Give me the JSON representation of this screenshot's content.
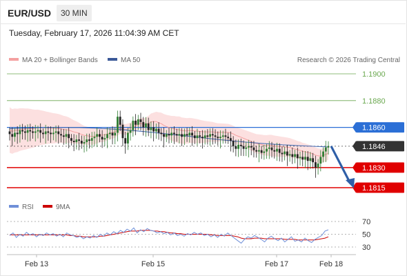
{
  "header": {
    "symbol": "EUR/USD",
    "timeframe": "30 MIN",
    "datetime": "Tuesday, February 17, 2026 11:04:39 AM CET"
  },
  "legend": {
    "ma20_bb": "MA 20 + Bollinger Bands",
    "ma50": "MA 50",
    "credit": "Research © 2026 Trading Central",
    "rsi": "RSI",
    "ma9": "9MA"
  },
  "colors": {
    "ma20": "#f4a0a0",
    "bands_fill": "#fbdada",
    "ma50": "#4a6fb5",
    "resistance_green": "#6aa84f",
    "resistance_blue": "#2b6fd6",
    "current": "#333333",
    "support_red": "#e00000",
    "candle_up": "#2e7d32",
    "candle_down": "#222222",
    "rsi_line": "#6f8fd8",
    "rsi_ma": "#cc0000"
  },
  "chart_data": [
    {
      "type": "candlestick",
      "x_labels": [
        "Feb 13",
        "Feb 15",
        "Feb 17",
        "Feb 18"
      ],
      "ylim": [
        1.1805,
        1.1905
      ],
      "levels": [
        {
          "value": "1.1900",
          "kind": "resistance",
          "color": "#6aa84f",
          "boxed": false
        },
        {
          "value": "1.1880",
          "kind": "resistance",
          "color": "#6aa84f",
          "boxed": false
        },
        {
          "value": "1.1860",
          "kind": "pivot",
          "color": "#2b6fd6",
          "boxed": true
        },
        {
          "value": "1.1846",
          "kind": "current",
          "color": "#333333",
          "boxed": true
        },
        {
          "value": "1.1830",
          "kind": "support",
          "color": "#e00000",
          "boxed": true
        },
        {
          "value": "1.1815",
          "kind": "support",
          "color": "#e00000",
          "boxed": true
        }
      ],
      "closes": [
        1.1855,
        1.1853,
        1.1856,
        1.1855,
        1.1858,
        1.1857,
        1.1856,
        1.1858,
        1.1857,
        1.1856,
        1.1857,
        1.1858,
        1.1856,
        1.1855,
        1.1857,
        1.1856,
        1.1855,
        1.1856,
        1.1857,
        1.1855,
        1.1854,
        1.1853,
        1.1855,
        1.1852,
        1.185,
        1.1849,
        1.1851,
        1.185,
        1.1848,
        1.1849,
        1.1851,
        1.185,
        1.1852,
        1.1853,
        1.1855,
        1.1853,
        1.1851,
        1.1852,
        1.1855,
        1.1856,
        1.1854,
        1.1856,
        1.1868,
        1.1862,
        1.1852,
        1.1848,
        1.1856,
        1.1858,
        1.1865,
        1.1862,
        1.1866,
        1.1864,
        1.186,
        1.1863,
        1.1858,
        1.186,
        1.1857,
        1.1859,
        1.1856,
        1.1855,
        1.1853,
        1.1855,
        1.1854,
        1.1856,
        1.1855,
        1.1854,
        1.1855,
        1.1853,
        1.1855,
        1.1854,
        1.1856,
        1.1854,
        1.1852,
        1.1854,
        1.1853,
        1.1852,
        1.1854,
        1.1853,
        1.1855,
        1.1854,
        1.1853,
        1.1852,
        1.1853,
        1.1854,
        1.1853,
        1.1852,
        1.185,
        1.1846,
        1.1844,
        1.1847,
        1.1846,
        1.1844,
        1.1845,
        1.1846,
        1.1845,
        1.1843,
        1.1842,
        1.1843,
        1.1841,
        1.1842,
        1.1844,
        1.1845,
        1.1843,
        1.1842,
        1.1844,
        1.1841,
        1.184,
        1.1842,
        1.1839,
        1.184,
        1.1838,
        1.184,
        1.1837,
        1.1838,
        1.1836,
        1.1838,
        1.1835,
        1.1837,
        1.1834,
        1.183,
        1.1833,
        1.1838,
        1.1842,
        1.1845,
        1.1846
      ],
      "ma20_band_halfwidth": [
        0.0017,
        0.0015,
        0.0012,
        0.001,
        0.0007,
        0.0005,
        0.0004,
        0.0004,
        0.0008,
        0.001,
        0.0009,
        0.0007,
        0.0006,
        0.0007,
        0.0008,
        0.0007,
        0.0006,
        0.0005
      ],
      "ma50_start": 1.1859,
      "ma50_end": 1.1846,
      "forecast": {
        "from": "1.1846",
        "to": "1.1815",
        "direction": "down"
      }
    },
    {
      "type": "line",
      "series": [
        {
          "name": "RSI"
        },
        {
          "name": "9MA"
        }
      ],
      "yticks": [
        "70",
        "50",
        "30"
      ],
      "ylim": [
        20,
        80
      ],
      "rsi": [
        48,
        52,
        45,
        50,
        47,
        53,
        49,
        51,
        46,
        50,
        48,
        52,
        49,
        51,
        47,
        50,
        46,
        52,
        49,
        48,
        45,
        47,
        43,
        46,
        44,
        48,
        45,
        50,
        47,
        52,
        49,
        54,
        51,
        56,
        53,
        58,
        55,
        60,
        52,
        57,
        54,
        59,
        56,
        55,
        52,
        54,
        51,
        53,
        49,
        52,
        48,
        50,
        47,
        51,
        49,
        53,
        50,
        52,
        48,
        50,
        46,
        49,
        45,
        50,
        47,
        52,
        48,
        44,
        40,
        36,
        42,
        46,
        44,
        48,
        45,
        42,
        38,
        44,
        47,
        43,
        40,
        44,
        38,
        42,
        46,
        39,
        41,
        38,
        44,
        40,
        37,
        42,
        45,
        48,
        55,
        57
      ],
      "ma9": [
        49,
        49,
        49,
        49,
        49,
        49,
        49,
        49,
        49,
        49,
        49,
        49,
        49,
        49,
        49,
        49,
        49,
        49,
        48,
        48,
        47,
        47,
        46,
        46,
        46,
        46,
        46,
        47,
        47,
        48,
        49,
        50,
        51,
        52,
        53,
        54,
        55,
        55,
        55,
        56,
        56,
        56,
        56,
        55,
        55,
        54,
        54,
        53,
        52,
        52,
        51,
        51,
        50,
        50,
        50,
        50,
        50,
        50,
        50,
        50,
        49,
        49,
        48,
        48,
        48,
        48,
        48,
        47,
        46,
        44,
        43,
        43,
        43,
        44,
        44,
        44,
        43,
        43,
        43,
        43,
        43,
        43,
        42,
        42,
        42,
        42,
        41,
        41,
        41,
        41,
        41,
        41,
        42,
        43,
        44,
        46
      ]
    }
  ]
}
